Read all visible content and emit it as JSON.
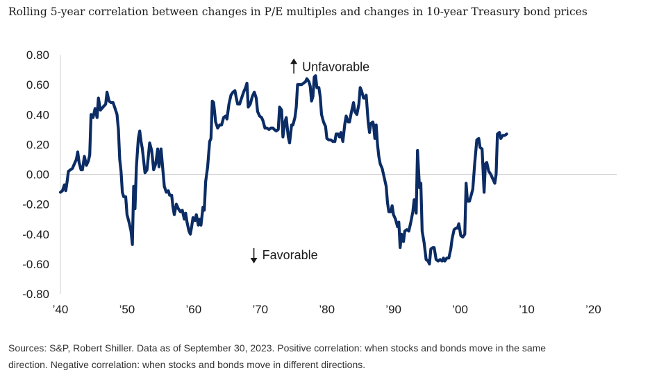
{
  "title": "Rolling 5-year correlation between changes in P/E multiples and changes in 10-year Treasury bond prices",
  "footer": {
    "line1": "Sources: S&P, Robert Shiller. Data as of September 30, 2023. Positive correlation: when stocks and bonds move in the same",
    "line2": "direction. Negative correlation: when stocks and bonds move in different directions."
  },
  "colors": {
    "line": "#0b2c64",
    "axis": "#d0d0d0",
    "text": "#1a1a1a"
  },
  "chart_data": {
    "type": "line",
    "title": "Rolling 5-year correlation between changes in P/E multiples and changes in 10-year Treasury bond prices",
    "ylim": [
      -0.8,
      0.8
    ],
    "xlim": [
      1940,
      2023.5
    ],
    "grid": false,
    "y_ticks": [
      0.8,
      0.6,
      0.4,
      0.2,
      0.0,
      -0.2,
      -0.4,
      -0.6,
      -0.8
    ],
    "y_tick_labels": [
      "0.80",
      "0.60",
      "0.40",
      "0.20",
      "0.00",
      "-0.20",
      "-0.40",
      "-0.60",
      "-0.80"
    ],
    "x_ticks": [
      1940,
      1950,
      1960,
      1970,
      1980,
      1990,
      2000,
      2010,
      2020
    ],
    "x_tick_labels": [
      "’40",
      "’50",
      "’60",
      "’70",
      "’80",
      "’90",
      "’00",
      "’10",
      "’20"
    ],
    "annotations": [
      {
        "text": "Unfavorable",
        "arrow": "up",
        "x": 1976.5,
        "y": 0.72
      },
      {
        "text": "Favorable",
        "arrow": "down",
        "x": 1970.5,
        "y": -0.54
      }
    ],
    "series": [
      {
        "points": [
          [
            1940.0,
            -0.12
          ],
          [
            1940.3,
            -0.11
          ],
          [
            1940.6,
            -0.07
          ],
          [
            1940.8,
            -0.11
          ],
          [
            1941.0,
            -0.05
          ],
          [
            1941.2,
            0.02
          ],
          [
            1941.5,
            0.03
          ],
          [
            1941.8,
            0.04
          ],
          [
            1942.1,
            0.07
          ],
          [
            1942.4,
            0.1
          ],
          [
            1942.6,
            0.15
          ],
          [
            1942.8,
            0.08
          ],
          [
            1943.1,
            0.03
          ],
          [
            1943.3,
            0.03
          ],
          [
            1943.6,
            0.12
          ],
          [
            1943.9,
            0.06
          ],
          [
            1944.2,
            0.09
          ],
          [
            1944.4,
            0.13
          ],
          [
            1944.6,
            0.4
          ],
          [
            1944.9,
            0.38
          ],
          [
            1945.2,
            0.44
          ],
          [
            1945.5,
            0.38
          ],
          [
            1945.7,
            0.51
          ],
          [
            1946.0,
            0.43
          ],
          [
            1946.4,
            0.45
          ],
          [
            1946.8,
            0.47
          ],
          [
            1947.0,
            0.55
          ],
          [
            1947.3,
            0.49
          ],
          [
            1947.6,
            0.48
          ],
          [
            1947.9,
            0.48
          ],
          [
            1948.2,
            0.44
          ],
          [
            1948.5,
            0.4
          ],
          [
            1948.7,
            0.3
          ],
          [
            1948.9,
            0.1
          ],
          [
            1949.1,
            0.02
          ],
          [
            1949.3,
            -0.12
          ],
          [
            1949.5,
            -0.15
          ],
          [
            1949.8,
            -0.15
          ],
          [
            1950.0,
            -0.27
          ],
          [
            1950.3,
            -0.32
          ],
          [
            1950.6,
            -0.38
          ],
          [
            1950.8,
            -0.47
          ],
          [
            1951.0,
            -0.08
          ],
          [
            1951.2,
            -0.23
          ],
          [
            1951.4,
            0.05
          ],
          [
            1951.7,
            0.24
          ],
          [
            1951.9,
            0.29
          ],
          [
            1952.1,
            0.22
          ],
          [
            1952.3,
            0.17
          ],
          [
            1952.5,
            0.09
          ],
          [
            1952.7,
            0.01
          ],
          [
            1953.0,
            0.03
          ],
          [
            1953.4,
            0.21
          ],
          [
            1953.7,
            0.16
          ],
          [
            1954.0,
            0.03
          ],
          [
            1954.3,
            0.07
          ],
          [
            1954.6,
            0.17
          ],
          [
            1954.8,
            0.05
          ],
          [
            1955.1,
            0.17
          ],
          [
            1955.4,
            0.02
          ],
          [
            1955.6,
            -0.08
          ],
          [
            1955.9,
            -0.12
          ],
          [
            1956.2,
            -0.11
          ],
          [
            1956.4,
            -0.14
          ],
          [
            1956.7,
            -0.14
          ],
          [
            1956.9,
            -0.22
          ],
          [
            1957.1,
            -0.27
          ],
          [
            1957.4,
            -0.2
          ],
          [
            1957.7,
            -0.23
          ],
          [
            1958.0,
            -0.25
          ],
          [
            1958.3,
            -0.24
          ],
          [
            1958.6,
            -0.3
          ],
          [
            1958.8,
            -0.26
          ],
          [
            1959.0,
            -0.32
          ],
          [
            1959.3,
            -0.38
          ],
          [
            1959.5,
            -0.4
          ],
          [
            1959.7,
            -0.35
          ],
          [
            1959.9,
            -0.29
          ],
          [
            1960.2,
            -0.31
          ],
          [
            1960.4,
            -0.27
          ],
          [
            1960.7,
            -0.34
          ],
          [
            1960.9,
            -0.3
          ],
          [
            1961.1,
            -0.34
          ],
          [
            1961.4,
            -0.22
          ],
          [
            1961.6,
            -0.24
          ],
          [
            1961.8,
            -0.05
          ],
          [
            1962.1,
            0.05
          ],
          [
            1962.4,
            0.22
          ],
          [
            1962.6,
            0.24
          ],
          [
            1962.8,
            0.49
          ],
          [
            1963.0,
            0.48
          ],
          [
            1963.3,
            0.35
          ],
          [
            1963.6,
            0.31
          ],
          [
            1963.9,
            0.33
          ],
          [
            1964.2,
            0.33
          ],
          [
            1964.5,
            0.38
          ],
          [
            1964.8,
            0.39
          ],
          [
            1965.0,
            0.37
          ],
          [
            1965.3,
            0.47
          ],
          [
            1965.6,
            0.53
          ],
          [
            1965.9,
            0.55
          ],
          [
            1966.2,
            0.56
          ],
          [
            1966.4,
            0.51
          ],
          [
            1966.6,
            0.47
          ],
          [
            1966.9,
            0.47
          ],
          [
            1967.2,
            0.51
          ],
          [
            1967.5,
            0.55
          ],
          [
            1967.8,
            0.58
          ],
          [
            1968.0,
            0.61
          ],
          [
            1968.2,
            0.45
          ],
          [
            1968.5,
            0.47
          ],
          [
            1968.8,
            0.52
          ],
          [
            1969.1,
            0.55
          ],
          [
            1969.4,
            0.51
          ],
          [
            1969.6,
            0.42
          ],
          [
            1969.9,
            0.39
          ],
          [
            1970.2,
            0.38
          ],
          [
            1970.4,
            0.36
          ],
          [
            1970.7,
            0.31
          ],
          [
            1971.0,
            0.31
          ],
          [
            1971.3,
            0.3
          ],
          [
            1971.6,
            0.31
          ],
          [
            1971.9,
            0.31
          ],
          [
            1972.1,
            0.3
          ],
          [
            1972.4,
            0.29
          ],
          [
            1972.7,
            0.3
          ],
          [
            1972.9,
            0.45
          ],
          [
            1973.2,
            0.43
          ],
          [
            1973.4,
            0.25
          ],
          [
            1973.7,
            0.35
          ],
          [
            1973.9,
            0.38
          ],
          [
            1974.2,
            0.25
          ],
          [
            1974.4,
            0.21
          ],
          [
            1974.7,
            0.33
          ],
          [
            1974.9,
            0.33
          ],
          [
            1975.2,
            0.38
          ],
          [
            1975.4,
            0.45
          ],
          [
            1975.6,
            0.6
          ],
          [
            1975.9,
            0.6
          ],
          [
            1976.2,
            0.6
          ],
          [
            1976.5,
            0.61
          ],
          [
            1976.8,
            0.62
          ],
          [
            1977.0,
            0.64
          ],
          [
            1977.3,
            0.62
          ],
          [
            1977.5,
            0.59
          ],
          [
            1977.7,
            0.49
          ],
          [
            1977.9,
            0.52
          ],
          [
            1978.1,
            0.65
          ],
          [
            1978.3,
            0.66
          ],
          [
            1978.5,
            0.58
          ],
          [
            1978.8,
            0.58
          ],
          [
            1979.0,
            0.52
          ],
          [
            1979.2,
            0.4
          ],
          [
            1979.5,
            0.35
          ],
          [
            1979.8,
            0.32
          ],
          [
            1980.0,
            0.24
          ],
          [
            1980.3,
            0.23
          ],
          [
            1980.6,
            0.23
          ],
          [
            1980.9,
            0.22
          ],
          [
            1981.2,
            0.22
          ],
          [
            1981.4,
            0.27
          ],
          [
            1981.7,
            0.27
          ],
          [
            1981.9,
            0.25
          ],
          [
            1982.1,
            0.28
          ],
          [
            1982.4,
            0.22
          ],
          [
            1982.7,
            0.34
          ],
          [
            1982.9,
            0.39
          ],
          [
            1983.2,
            0.35
          ],
          [
            1983.4,
            0.35
          ],
          [
            1983.7,
            0.42
          ],
          [
            1984.0,
            0.48
          ],
          [
            1984.2,
            0.42
          ],
          [
            1984.5,
            0.4
          ],
          [
            1984.8,
            0.47
          ],
          [
            1985.0,
            0.58
          ],
          [
            1985.2,
            0.56
          ],
          [
            1985.5,
            0.51
          ],
          [
            1985.7,
            0.51
          ],
          [
            1985.9,
            0.53
          ],
          [
            1986.2,
            0.35
          ],
          [
            1986.4,
            0.28
          ],
          [
            1986.6,
            0.34
          ],
          [
            1986.9,
            0.35
          ],
          [
            1987.0,
            0.33
          ],
          [
            1987.2,
            0.24
          ],
          [
            1987.4,
            0.33
          ],
          [
            1987.6,
            0.2
          ],
          [
            1987.8,
            0.12
          ],
          [
            1988.0,
            0.07
          ],
          [
            1988.3,
            0.04
          ],
          [
            1988.6,
            -0.02
          ],
          [
            1988.9,
            -0.08
          ],
          [
            1989.1,
            -0.19
          ],
          [
            1989.3,
            -0.25
          ],
          [
            1989.6,
            -0.25
          ],
          [
            1989.8,
            -0.21
          ],
          [
            1990.0,
            -0.27
          ],
          [
            1990.3,
            -0.3
          ],
          [
            1990.6,
            -0.35
          ],
          [
            1990.8,
            -0.32
          ],
          [
            1991.0,
            -0.49
          ],
          [
            1991.2,
            -0.4
          ],
          [
            1991.5,
            -0.45
          ],
          [
            1991.7,
            -0.38
          ],
          [
            1992.0,
            -0.37
          ],
          [
            1992.3,
            -0.38
          ],
          [
            1992.6,
            -0.32
          ],
          [
            1992.9,
            -0.25
          ],
          [
            1993.1,
            -0.17
          ],
          [
            1993.4,
            -0.26
          ],
          [
            1993.6,
            0.16
          ],
          [
            1993.9,
            -0.09
          ],
          [
            1994.1,
            -0.06
          ],
          [
            1994.3,
            -0.38
          ],
          [
            1994.6,
            -0.46
          ],
          [
            1994.9,
            -0.57
          ],
          [
            1995.2,
            -0.58
          ],
          [
            1995.4,
            -0.6
          ],
          [
            1995.6,
            -0.5
          ],
          [
            1995.9,
            -0.49
          ],
          [
            1996.1,
            -0.49
          ],
          [
            1996.4,
            -0.57
          ],
          [
            1996.7,
            -0.58
          ],
          [
            1997.0,
            -0.57
          ],
          [
            1997.3,
            -0.58
          ],
          [
            1997.5,
            -0.56
          ],
          [
            1997.7,
            -0.58
          ],
          [
            1998.0,
            -0.56
          ],
          [
            1998.3,
            -0.56
          ],
          [
            1998.6,
            -0.5
          ],
          [
            1998.8,
            -0.43
          ],
          [
            1999.1,
            -0.37
          ],
          [
            1999.4,
            -0.36
          ],
          [
            1999.6,
            -0.36
          ],
          [
            1999.8,
            -0.33
          ],
          [
            2000.1,
            -0.41
          ],
          [
            2000.4,
            -0.42
          ],
          [
            2000.7,
            -0.4
          ],
          [
            2000.9,
            -0.06
          ],
          [
            2001.1,
            -0.18
          ],
          [
            2001.4,
            -0.18
          ],
          [
            2001.6,
            -0.15
          ],
          [
            2001.9,
            -0.1
          ],
          [
            2002.2,
            0.08
          ],
          [
            2002.5,
            0.23
          ],
          [
            2002.8,
            0.24
          ],
          [
            2003.0,
            0.18
          ],
          [
            2003.3,
            0.17
          ],
          [
            2003.6,
            -0.12
          ],
          [
            2003.8,
            0.07
          ],
          [
            2004.0,
            0.08
          ],
          [
            2004.3,
            0.02
          ],
          [
            2004.6,
            0.0
          ],
          [
            2004.9,
            -0.03
          ],
          [
            2005.2,
            -0.06
          ],
          [
            2005.4,
            0.0
          ],
          [
            2005.6,
            0.27
          ],
          [
            2005.9,
            0.28
          ],
          [
            2006.1,
            0.24
          ],
          [
            2006.4,
            0.26
          ],
          [
            2006.7,
            0.26
          ],
          [
            2007.0,
            0.27
          ]
        ]
      }
    ]
  }
}
